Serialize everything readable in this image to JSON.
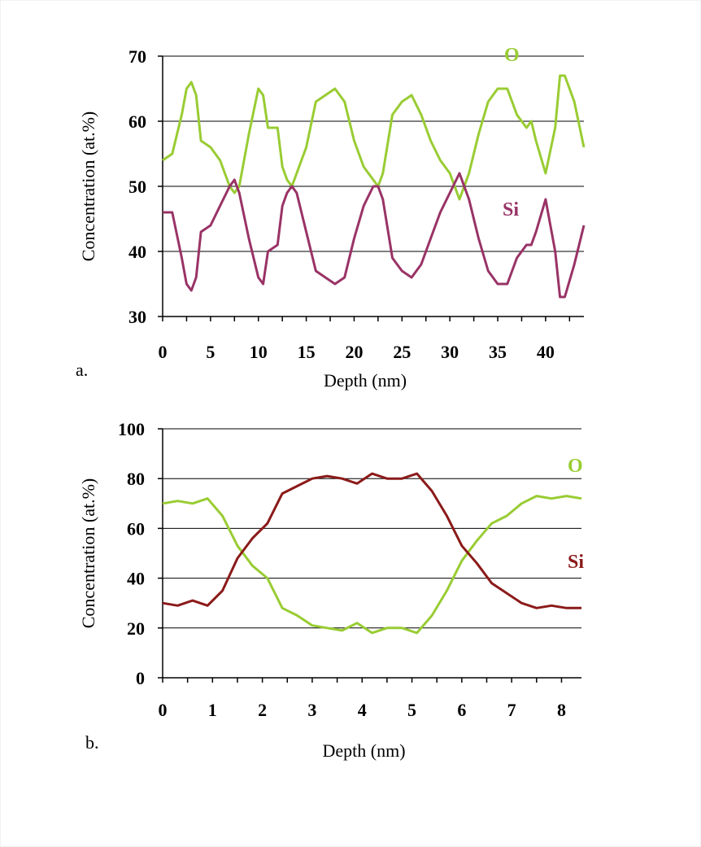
{
  "chart_data": [
    {
      "type": "line",
      "panel_label": "a.",
      "xlabel": "Depth (nm)",
      "ylabel": "Concentration (at.%)",
      "xlim": [
        0,
        44
      ],
      "ylim": [
        30,
        70
      ],
      "xticks": [
        0,
        5,
        10,
        15,
        20,
        25,
        30,
        35,
        40
      ],
      "yticks": [
        30,
        40,
        50,
        60,
        70
      ],
      "grid": "horizontal",
      "series": [
        {
          "name": "O",
          "color": "#99cc33",
          "x": [
            0,
            1,
            2,
            2.5,
            3,
            3.5,
            4,
            5,
            6,
            7,
            7.5,
            8,
            9,
            10,
            10.5,
            11,
            12,
            12.5,
            13,
            13.5,
            14,
            15,
            16,
            17,
            18,
            19,
            20,
            21,
            22,
            22.5,
            23,
            24,
            25,
            26,
            27,
            28,
            29,
            30,
            31,
            32,
            33,
            34,
            35,
            36,
            37,
            38,
            38.5,
            39,
            40,
            41,
            41.5,
            42,
            43,
            44
          ],
          "values": [
            54,
            55,
            61,
            65,
            66,
            64,
            57,
            56,
            54,
            50,
            49,
            50,
            58,
            65,
            64,
            59,
            59,
            53,
            51,
            50,
            52,
            56,
            63,
            64,
            65,
            63,
            57,
            53,
            51,
            50,
            52,
            61,
            63,
            64,
            61,
            57,
            54,
            52,
            48,
            52,
            58,
            63,
            65,
            65,
            61,
            59,
            60,
            57,
            52,
            59,
            67,
            67,
            63,
            56
          ]
        },
        {
          "name": "Si",
          "color": "#993366",
          "x": [
            0,
            1,
            2,
            2.5,
            3,
            3.5,
            4,
            5,
            6,
            7,
            7.5,
            8,
            9,
            10,
            10.5,
            11,
            12,
            12.5,
            13,
            13.5,
            14,
            15,
            16,
            17,
            18,
            19,
            20,
            21,
            22,
            22.5,
            23,
            24,
            25,
            26,
            27,
            28,
            29,
            30,
            31,
            32,
            33,
            34,
            35,
            36,
            37,
            38,
            38.5,
            39,
            40,
            41,
            41.5,
            42,
            43,
            44
          ],
          "values": [
            46,
            46,
            39,
            35,
            34,
            36,
            43,
            44,
            47,
            50,
            51,
            49,
            42,
            36,
            35,
            40,
            41,
            47,
            49,
            50,
            49,
            43,
            37,
            36,
            35,
            36,
            42,
            47,
            50,
            50,
            48,
            39,
            37,
            36,
            38,
            42,
            46,
            49,
            52,
            48,
            42,
            37,
            35,
            35,
            39,
            41,
            41,
            43,
            48,
            40,
            33,
            33,
            38,
            44
          ]
        }
      ]
    },
    {
      "type": "line",
      "panel_label": "b.",
      "xlabel": "Depth (nm)",
      "ylabel": "Concentration (at.%)",
      "xlim": [
        0,
        8.4
      ],
      "ylim": [
        0,
        100
      ],
      "xticks": [
        0,
        1,
        2,
        3,
        4,
        5,
        6,
        7,
        8
      ],
      "yticks": [
        0,
        20,
        40,
        60,
        80,
        100
      ],
      "grid": "horizontal",
      "series": [
        {
          "name": "O",
          "color": "#99cc33",
          "x": [
            0,
            0.3,
            0.6,
            0.9,
            1.2,
            1.5,
            1.8,
            2.1,
            2.4,
            2.7,
            3.0,
            3.3,
            3.6,
            3.9,
            4.2,
            4.5,
            4.8,
            5.1,
            5.4,
            5.7,
            6.0,
            6.3,
            6.6,
            6.9,
            7.2,
            7.5,
            7.8,
            8.1,
            8.4
          ],
          "values": [
            70,
            71,
            70,
            72,
            65,
            53,
            45,
            40,
            28,
            25,
            21,
            20,
            19,
            22,
            18,
            20,
            20,
            18,
            25,
            35,
            47,
            55,
            62,
            65,
            70,
            73,
            72,
            73,
            72
          ]
        },
        {
          "name": "Si",
          "color": "#8b1a1a",
          "x": [
            0,
            0.3,
            0.6,
            0.9,
            1.2,
            1.5,
            1.8,
            2.1,
            2.4,
            2.7,
            3.0,
            3.3,
            3.6,
            3.9,
            4.2,
            4.5,
            4.8,
            5.1,
            5.4,
            5.7,
            6.0,
            6.3,
            6.6,
            6.9,
            7.2,
            7.5,
            7.8,
            8.1,
            8.4
          ],
          "values": [
            30,
            29,
            31,
            29,
            35,
            48,
            56,
            62,
            74,
            77,
            80,
            81,
            80,
            78,
            82,
            80,
            80,
            82,
            75,
            65,
            53,
            46,
            38,
            34,
            30,
            28,
            29,
            28,
            28
          ]
        }
      ]
    }
  ]
}
